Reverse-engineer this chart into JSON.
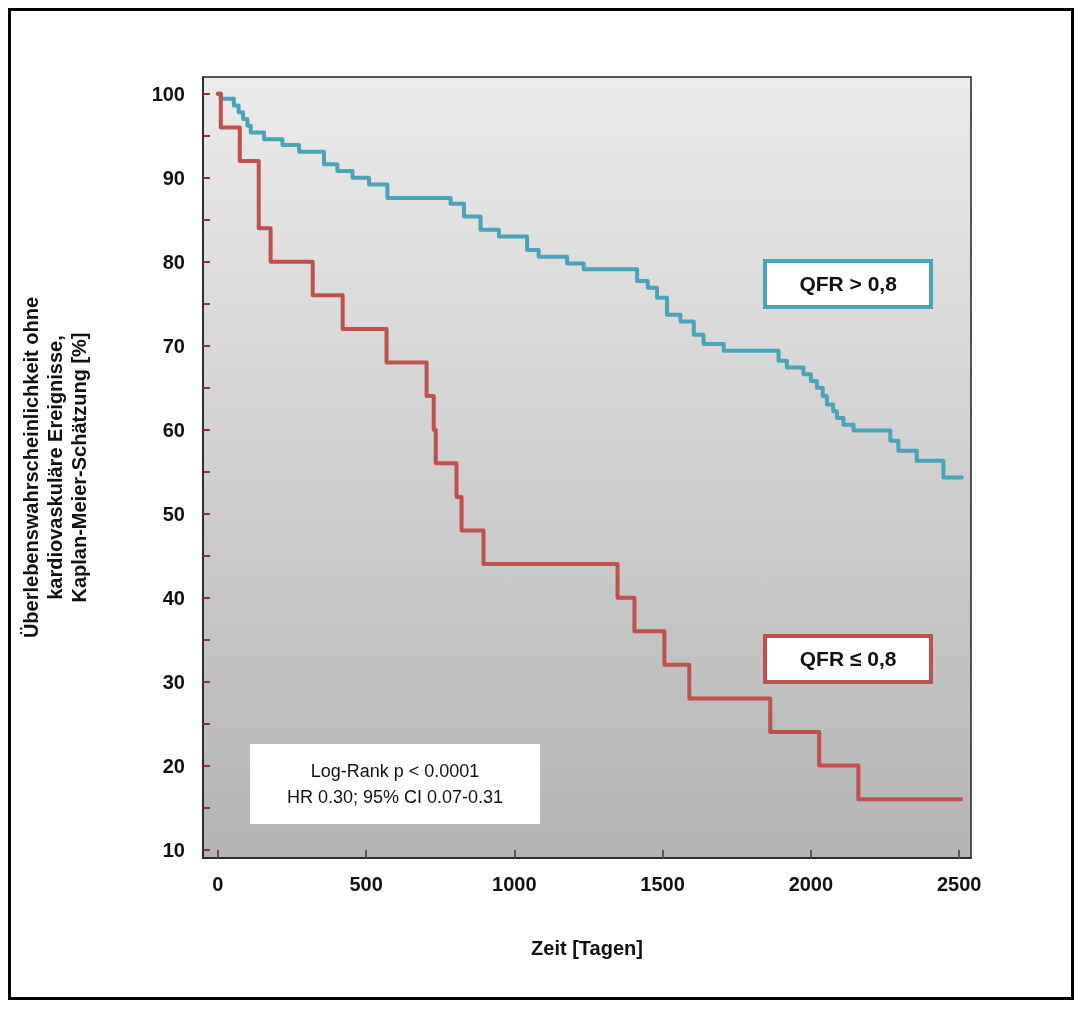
{
  "chart_data": {
    "type": "step",
    "ylabel": "Überlebenswahrscheinlichkeit ohne\nkardiovaskuläre Ereignisse,\nKaplan-Meier-Schätzung [%]",
    "xlabel": "Zeit [Tagen]",
    "annotations": [
      "Log-Rank p < 0.0001",
      "HR 0.30; 95% CI 0.07-0.31"
    ],
    "xlim": [
      -50,
      2540
    ],
    "xticks": [
      0,
      500,
      1000,
      1500,
      2000,
      2500
    ],
    "ylim": [
      9,
      102
    ],
    "yticks": [
      10,
      {
        "value": 15,
        "label": null
      },
      20,
      {
        "value": 25,
        "label": null
      },
      30,
      {
        "value": 35,
        "label": null
      },
      40,
      {
        "value": 45,
        "label": null
      },
      50,
      {
        "value": 55,
        "label": null
      },
      60,
      {
        "value": 65,
        "label": null
      },
      70,
      {
        "value": 75,
        "label": null
      },
      80,
      {
        "value": 85,
        "label": null
      },
      90,
      {
        "value": 95,
        "label": null
      },
      100
    ],
    "grid": false,
    "legend": false,
    "marker": "none",
    "line_style": "solid",
    "series": [
      {
        "name": "QFR > 0,8",
        "color": "#4ba3b9",
        "x": [
          0,
          10,
          54,
          70,
          85,
          100,
          111,
          156,
          218,
          274,
          358,
          403,
          454,
          510,
          572,
          785,
          830,
          886,
          948,
          1043,
          1082,
          1178,
          1234,
          1414,
          1450,
          1481,
          1515,
          1560,
          1605,
          1638,
          1706,
          1891,
          1919,
          1975,
          2000,
          2020,
          2040,
          2054,
          2075,
          2088,
          2110,
          2144,
          2268,
          2295,
          2357,
          2447,
          2509
        ],
        "values": [
          100,
          99.4,
          98.6,
          97.8,
          97.0,
          96.2,
          95.4,
          94.6,
          93.9,
          93.1,
          91.6,
          90.8,
          90.0,
          89.2,
          87.6,
          86.9,
          85.4,
          83.8,
          83.0,
          81.4,
          80.6,
          79.8,
          79.1,
          77.7,
          76.9,
          75.7,
          73.7,
          72.9,
          71.3,
          70.2,
          69.4,
          68.2,
          67.4,
          66.6,
          65.8,
          65.0,
          64.0,
          63.0,
          62.2,
          61.4,
          60.6,
          59.9,
          58.7,
          57.5,
          56.3,
          54.3,
          54.3
        ]
      },
      {
        "name": "QFR ≤ 0,8",
        "color": "#c0504d",
        "x": [
          0,
          10,
          74,
          138,
          178,
          320,
          421,
          569,
          704,
          728,
          735,
          805,
          822,
          896,
          1348,
          1405,
          1506,
          1590,
          1863,
          2028,
          2160,
          2507
        ],
        "values": [
          100,
          96,
          92,
          84,
          80,
          76,
          72,
          68,
          64,
          60,
          56,
          52,
          48,
          44,
          40,
          36,
          32,
          28,
          24,
          20,
          16,
          16
        ]
      }
    ]
  }
}
